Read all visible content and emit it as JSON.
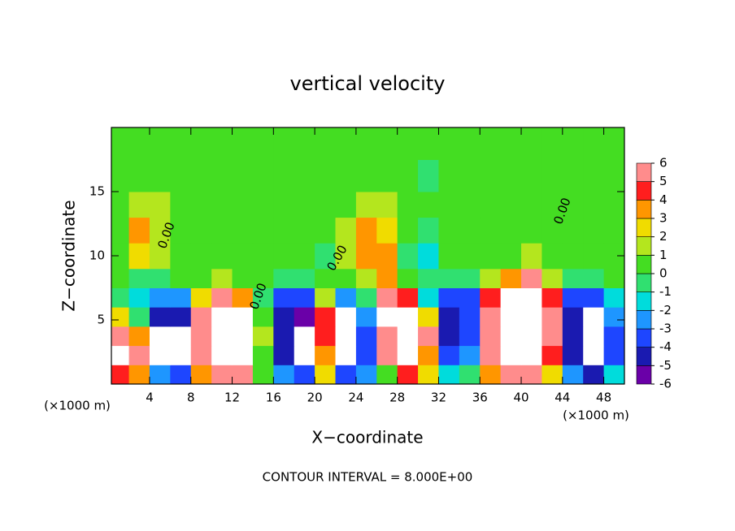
{
  "chart_data": {
    "type": "heatmap",
    "title": "vertical velocity",
    "x_label": "X−coordinate",
    "y_label": "Z−coordinate",
    "x_unit_label": "(×1000 m)",
    "footer": "CONTOUR INTERVAL = 8.000E+00",
    "contour_labels": [
      "0.00",
      "0.00",
      "0.00",
      "0.00"
    ],
    "xlim": [
      0.3,
      50
    ],
    "ylim": [
      0,
      20
    ],
    "xticks": [
      4,
      8,
      12,
      16,
      20,
      24,
      28,
      32,
      36,
      40,
      44,
      48
    ],
    "yticks": [
      5,
      10,
      15
    ],
    "x_edges": [
      0.3,
      2,
      4,
      6,
      8,
      10,
      12,
      14,
      16,
      18,
      20,
      22,
      24,
      26,
      28,
      30,
      32,
      34,
      36,
      38,
      40,
      42,
      44,
      46,
      48,
      50
    ],
    "y_edges": [
      0,
      1.5,
      3,
      4.5,
      6,
      7.5,
      9,
      11,
      13,
      15,
      17.5,
      20
    ],
    "values": [
      [
        4,
        3,
        -3,
        -4,
        3,
        5,
        5,
        0,
        -3,
        -4,
        2,
        -4,
        -3,
        0,
        4,
        2,
        -2,
        -1,
        3,
        5,
        5,
        2,
        -3,
        -5,
        -2
      ],
      [
        8,
        6,
        -8,
        -7,
        5,
        9,
        8,
        0,
        -5,
        -8,
        3,
        -8,
        -4,
        5,
        8,
        3,
        -4,
        -3,
        5,
        9,
        9,
        4,
        -5,
        -8,
        -4
      ],
      [
        5,
        3,
        -7,
        -8,
        6,
        10,
        9,
        1,
        -5,
        -8,
        4,
        -8,
        -4,
        6,
        9,
        5,
        -5,
        -4,
        6,
        10,
        10,
        5,
        -5,
        -8,
        -4
      ],
      [
        2,
        -1,
        -5,
        -5,
        6,
        9,
        8,
        0,
        -5,
        -6,
        4,
        -7,
        -3,
        8,
        8,
        2,
        -5,
        -4,
        6,
        10,
        10,
        5,
        -5,
        -7,
        -3
      ],
      [
        -1,
        -2,
        -3,
        -3,
        2,
        5,
        3,
        -1,
        -4,
        -4,
        1,
        -3,
        -1,
        6,
        4,
        -2,
        -4,
        -4,
        4,
        8,
        8,
        4,
        -4,
        -4,
        -2
      ],
      [
        0,
        -1,
        -1,
        0,
        0,
        1,
        0,
        0,
        -1,
        -1,
        0,
        0,
        1,
        3,
        0,
        -1,
        -1,
        -1,
        1,
        3,
        5,
        1,
        -1,
        -1,
        0
      ],
      [
        0,
        2,
        1,
        0,
        0,
        0,
        0,
        0,
        0,
        0,
        -1,
        1,
        3,
        3,
        -1,
        -2,
        0,
        0,
        0,
        0,
        1,
        0,
        0,
        0,
        0
      ],
      [
        0,
        3,
        1,
        0,
        0,
        0,
        0,
        0,
        0,
        0,
        0,
        1,
        3,
        2,
        0,
        -1,
        0,
        0,
        0,
        0,
        0,
        0,
        0,
        0,
        0
      ],
      [
        0,
        1,
        1,
        0,
        0,
        0,
        0,
        0,
        0,
        0,
        0,
        0,
        1,
        1,
        0,
        0,
        0,
        0,
        0,
        0,
        0,
        0,
        0,
        0,
        0
      ],
      [
        0,
        0,
        0,
        0,
        0,
        0,
        0,
        0,
        0,
        0,
        0,
        0,
        0,
        0,
        0,
        -1,
        0,
        0,
        0,
        0,
        0,
        0,
        0,
        0,
        0
      ],
      [
        0,
        0,
        0,
        0,
        0,
        0,
        0,
        0,
        0,
        0,
        0,
        0,
        0,
        0,
        0,
        0,
        0,
        0,
        0,
        0,
        0,
        0,
        0,
        0,
        0
      ]
    ],
    "colorbar_ticks": [
      -6,
      -5,
      -4,
      -3,
      -2,
      -1,
      0,
      1,
      2,
      3,
      4,
      5,
      6
    ],
    "colors": [
      "#6a00a8",
      "#1a1ab0",
      "#1e46ff",
      "#1e96ff",
      "#00dcdc",
      "#30e070",
      "#44dd22",
      "#b4e61e",
      "#f0dc00",
      "#ff9600",
      "#ff1e1e",
      "#ff8c8c"
    ],
    "over_color": "#ffffff",
    "under_color": "#ffffff"
  }
}
